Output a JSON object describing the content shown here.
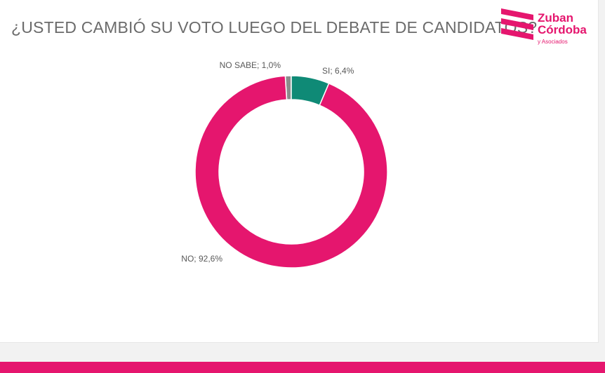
{
  "header": {
    "title": "¿USTED CAMBIÓ SU VOTO LUEGO DEL DEBATE DE CANDIDATOS?"
  },
  "logo": {
    "line1": "Zuban",
    "line2": "Córdoba",
    "line3": "y Asociados",
    "color": "#e5166e"
  },
  "chart_data": {
    "type": "pie",
    "style": "donut",
    "title": "¿USTED CAMBIÓ SU VOTO LUEGO DEL DEBATE DE CANDIDATOS?",
    "slices": [
      {
        "label": "NO SABE",
        "value": 1.0,
        "text": "NO SABE; 1,0%",
        "color": "#8c8c8c"
      },
      {
        "label": "SI",
        "value": 6.4,
        "text": "SI; 6,4%",
        "color": "#0f8a76"
      },
      {
        "label": "NO",
        "value": 92.6,
        "text": "NO; 92,6%",
        "color": "#e5166e"
      }
    ],
    "legend": "none"
  },
  "colors": {
    "accent": "#e5166e",
    "bottom_bar": "#e5166e"
  }
}
